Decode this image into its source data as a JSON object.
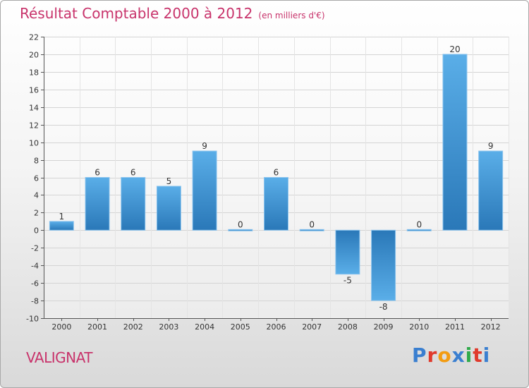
{
  "title": "Résultat Comptable 2000 à 2012",
  "subtitle": "(en milliers d'€)",
  "commune": "VALIGNAT",
  "logo": {
    "letters": [
      "P",
      "r",
      "o",
      "x",
      "i",
      "t",
      "i"
    ],
    "colors": [
      "#3a7fd0",
      "#e03a2c",
      "#f39c12",
      "#3a7fd0",
      "#2faa4a",
      "#e03a2c",
      "#3a7fd0"
    ]
  },
  "colors": {
    "bar_top": "#5aaee8",
    "bar_bottom": "#2a78b8"
  },
  "chart_data": {
    "type": "bar",
    "categories": [
      "2000",
      "2001",
      "2002",
      "2003",
      "2004",
      "2005",
      "2006",
      "2007",
      "2008",
      "2009",
      "2010",
      "2011",
      "2012"
    ],
    "values": [
      1,
      6,
      6,
      5,
      9,
      0,
      6,
      0,
      -5,
      -8,
      0,
      20,
      9
    ],
    "data_labels": [
      "1",
      "6",
      "6",
      "5",
      "9",
      "0",
      "6",
      "0",
      "-5",
      "-8",
      "0",
      "20",
      "9"
    ],
    "ylim": [
      -10,
      22
    ],
    "yticks": [
      -10,
      -8,
      -6,
      -4,
      -2,
      0,
      2,
      4,
      6,
      8,
      10,
      12,
      14,
      16,
      18,
      20,
      22
    ],
    "grid": true
  }
}
